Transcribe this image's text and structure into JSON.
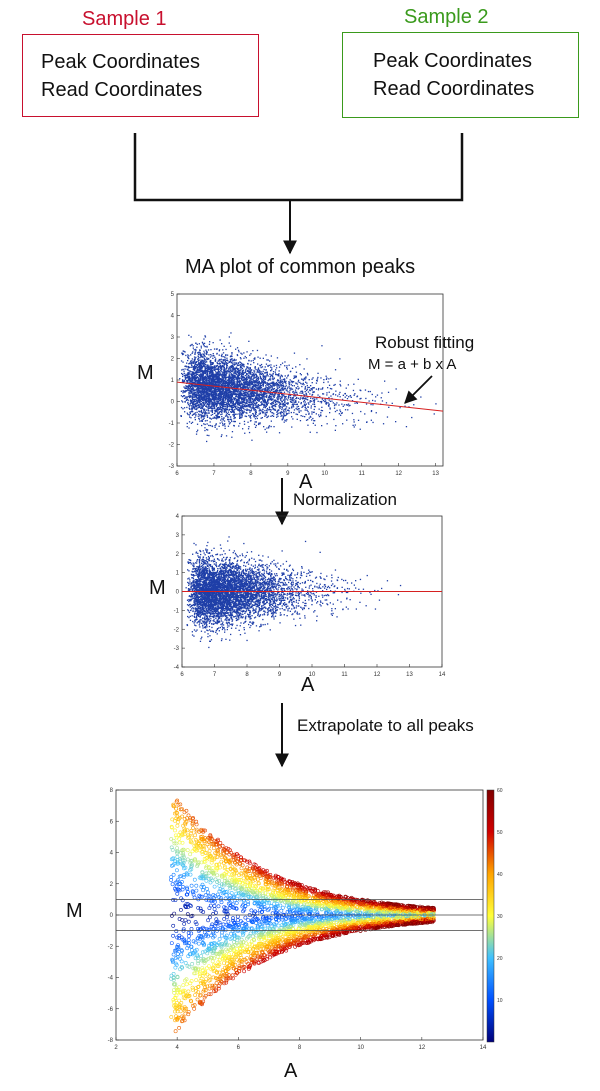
{
  "colors": {
    "sample1": "#c8102e",
    "sample2": "#3a9a1c",
    "point": "#1f3fa8",
    "fit_line": "#d62020",
    "reference_lines": "#444444",
    "colorbar_stops": [
      "#00007a",
      "#0050ff",
      "#3fc0ff",
      "#ffff3a",
      "#ffa500",
      "#d00000",
      "#800000"
    ]
  },
  "samples": [
    {
      "title": "Sample 1",
      "lines": [
        "Peak Coordinates",
        "Read Coordinates"
      ]
    },
    {
      "title": "Sample  2",
      "lines": [
        "Peak Coordinates",
        "Read Coordinates"
      ]
    }
  ],
  "steps": {
    "ma_plot_title": "MA plot of common peaks",
    "robust_fitting": "Robust fitting",
    "equation": "M = a + b x A",
    "normalization": "Normalization",
    "extrapolate": "Extrapolate to all peaks"
  },
  "chart_data": [
    {
      "type": "scatter",
      "title": "MA plot of common peaks",
      "xlabel": "A",
      "ylabel": "M",
      "xlim": [
        6,
        13.2
      ],
      "ylim": [
        -3,
        5
      ],
      "xticks": [
        6,
        7,
        8,
        9,
        10,
        11,
        12,
        13
      ],
      "yticks": [
        -3,
        -2,
        -1,
        0,
        1,
        2,
        3,
        4,
        5
      ],
      "fit_line": {
        "x": [
          6,
          13.2
        ],
        "y": [
          0.9,
          -0.45
        ]
      },
      "annotation": "Robust fitting M = a + b x A"
    },
    {
      "type": "scatter",
      "title": "",
      "xlabel": "A",
      "ylabel": "M",
      "xlim": [
        6,
        14
      ],
      "ylim": [
        -4,
        4
      ],
      "xticks": [
        6,
        7,
        8,
        9,
        10,
        11,
        12,
        13,
        14
      ],
      "yticks": [
        -4,
        -3,
        -2,
        -1,
        0,
        1,
        2,
        3,
        4
      ],
      "fit_line": {
        "x": [
          6,
          14
        ],
        "y": [
          0,
          0
        ]
      }
    },
    {
      "type": "scatter",
      "title": "",
      "xlabel": "A",
      "ylabel": "M",
      "xlim": [
        2,
        14
      ],
      "ylim": [
        -8,
        8
      ],
      "xticks": [
        2,
        4,
        6,
        8,
        10,
        12,
        14
      ],
      "yticks": [
        -8,
        -6,
        -4,
        -2,
        0,
        2,
        4,
        6,
        8
      ],
      "reference_lines_y": [
        -1,
        0,
        1
      ],
      "colorbar": {
        "min": 0,
        "max": 60,
        "ticks": [
          10,
          20,
          30,
          40,
          50,
          60
        ]
      }
    }
  ]
}
